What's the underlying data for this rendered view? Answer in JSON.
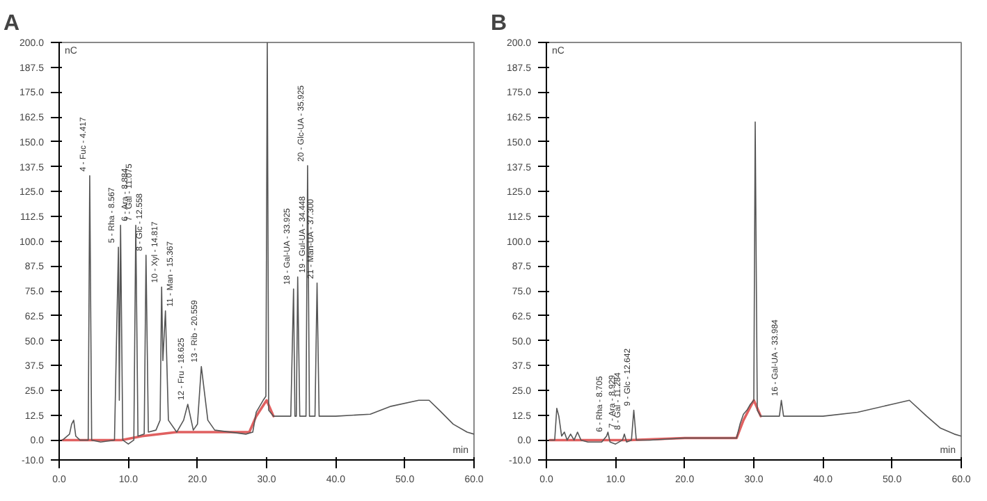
{
  "chart_data": [
    {
      "type": "line",
      "title": "A",
      "xlabel": "min",
      "ylabel": "nC",
      "xlim": [
        0,
        60
      ],
      "ylim": [
        -10,
        200
      ],
      "grid": false,
      "marker": "none",
      "line_style": "solid",
      "xticks": [
        {
          "value": 0,
          "label": "0.0"
        },
        {
          "value": 10,
          "label": "10.0"
        },
        {
          "value": 20,
          "label": "20.0"
        },
        {
          "value": 30,
          "label": "30.0"
        },
        {
          "value": 40,
          "label": "40.0"
        },
        {
          "value": 50,
          "label": "50.0"
        },
        {
          "value": 60,
          "label": "60.0"
        }
      ],
      "yticks": [
        {
          "value": -10,
          "label": "-10.0"
        },
        {
          "value": 0,
          "label": "0.0"
        },
        12.5,
        {
          "value": 25,
          "label": "25.0"
        },
        37.5,
        {
          "value": 50,
          "label": "50.0"
        },
        62.5,
        {
          "value": 75,
          "label": "75.0"
        },
        87.5,
        {
          "value": 100,
          "label": "100.0"
        },
        112.5,
        {
          "value": 125,
          "label": "125.0"
        },
        137.5,
        {
          "value": 150,
          "label": "150.0"
        },
        162.5,
        {
          "value": 175,
          "label": "175.0"
        },
        187.5,
        {
          "value": 200,
          "label": "200.0"
        }
      ],
      "series": [
        {
          "color": "#555555",
          "x": [
            0.5,
            1.5,
            1.8,
            2.1,
            2.4,
            3,
            4.2,
            4.42,
            4.7,
            6,
            8,
            8.57,
            8.7,
            8.88,
            9.2,
            10,
            10.8,
            11.08,
            11.4,
            12.3,
            12.56,
            12.9,
            14,
            14.6,
            14.82,
            15,
            15.37,
            15.8,
            17,
            18,
            18.6,
            19.4,
            20,
            20.56,
            21.5,
            22.5,
            27,
            28,
            28.5,
            29,
            29.5,
            29.9,
            30.1,
            30.3,
            31,
            33.5,
            33.9,
            34.1,
            34.3,
            34.5,
            34.8,
            35.7,
            35.93,
            36.2,
            37,
            37.3,
            37.6,
            40,
            45,
            48,
            52,
            53.5,
            55,
            57,
            59,
            60
          ],
          "values": [
            0,
            3,
            8,
            10,
            2,
            0,
            0,
            133,
            0,
            -1,
            0,
            97,
            20,
            108,
            0,
            -2,
            0,
            108,
            2,
            3,
            93,
            4,
            5,
            10,
            77,
            40,
            65,
            10,
            4,
            10,
            18,
            5,
            8,
            37,
            10,
            5,
            3,
            4,
            14,
            17,
            20,
            22,
            200,
            15,
            12,
            12,
            76,
            12,
            12,
            82,
            12,
            12,
            138,
            12,
            12,
            79,
            12,
            12,
            13,
            17,
            20,
            20,
            15,
            8,
            4,
            3
          ]
        },
        {
          "color": "#e06060",
          "x": [
            0.5,
            9,
            12,
            17,
            20,
            27.5,
            28.5,
            30,
            31
          ],
          "values": [
            0,
            0,
            2,
            4,
            4,
            4,
            12,
            20,
            12
          ]
        }
      ],
      "annotations": [
        {
          "text": "4 - Fuc - 4.417",
          "x": 4.42,
          "y": 133
        },
        {
          "text": "5 - Rha - 8.567",
          "x": 8.57,
          "y": 97
        },
        {
          "text": "6 - Ara - 8.884",
          "x": 8.88,
          "y": 108
        },
        {
          "text": "7 - Gal - 11.075",
          "x": 11.08,
          "y": 108
        },
        {
          "text": "8 - Glc - 12.558",
          "x": 12.56,
          "y": 93
        },
        {
          "text": "10 - Xyl - 14.817",
          "x": 14.82,
          "y": 77
        },
        {
          "text": "11 - Man - 15.367",
          "x": 15.37,
          "y": 65
        },
        {
          "text": "12 - Fru - 18.625",
          "x": 18.6,
          "y": 18
        },
        {
          "text": "13 - Rib - 20.559",
          "x": 20.56,
          "y": 37
        },
        {
          "text": "18 - Gal-UA - 33.925",
          "x": 33.9,
          "y": 76
        },
        {
          "text": "19 - Gul-UA - 34.448",
          "x": 34.5,
          "y": 82
        },
        {
          "text": "20 - Glc-UA - 35.925",
          "x": 35.93,
          "y": 138
        },
        {
          "text": "21 - Man-UA - 37.300",
          "x": 37.3,
          "y": 79
        }
      ]
    },
    {
      "type": "line",
      "title": "B",
      "xlabel": "min",
      "ylabel": "nC",
      "xlim": [
        0,
        60
      ],
      "ylim": [
        -10,
        200
      ],
      "grid": false,
      "marker": "none",
      "line_style": "solid",
      "xticks": [
        {
          "value": 0,
          "label": "0.0"
        },
        {
          "value": 10,
          "label": "10.0"
        },
        {
          "value": 20,
          "label": "20.0"
        },
        {
          "value": 30,
          "label": "30.0"
        },
        {
          "value": 40,
          "label": "40.0"
        },
        {
          "value": 50,
          "label": "50.0"
        },
        {
          "value": 60,
          "label": "60.0"
        }
      ],
      "yticks": [
        {
          "value": -10,
          "label": "-10.0"
        },
        {
          "value": 0,
          "label": "0.0"
        },
        12.5,
        {
          "value": 25,
          "label": "25.0"
        },
        37.5,
        {
          "value": 50,
          "label": "50.0"
        },
        62.5,
        {
          "value": 75,
          "label": "75.0"
        },
        87.5,
        {
          "value": 100,
          "label": "100.0"
        },
        112.5,
        {
          "value": 125,
          "label": "125.0"
        },
        137.5,
        {
          "value": 150,
          "label": "150.0"
        },
        162.5,
        {
          "value": 175,
          "label": "175.0"
        },
        187.5,
        {
          "value": 200,
          "label": "200.0"
        }
      ],
      "series": [
        {
          "color": "#555555",
          "x": [
            0.5,
            1.2,
            1.5,
            1.8,
            2.2,
            2.6,
            3,
            3.5,
            4,
            4.5,
            5,
            6,
            8,
            8.7,
            8.9,
            9.2,
            10,
            11,
            11.28,
            11.6,
            12.3,
            12.64,
            13,
            15,
            20,
            25,
            27.5,
            28,
            28.5,
            29,
            29.5,
            30,
            30.2,
            30.5,
            31,
            33.7,
            33.98,
            34.3,
            40,
            45,
            50,
            52.5,
            55,
            57,
            59,
            60
          ],
          "values": [
            0,
            0,
            16,
            12,
            2,
            4,
            0,
            3,
            0,
            4,
            0,
            -1,
            -1,
            2,
            4,
            -1,
            -2,
            0,
            3,
            -1,
            0,
            15,
            0,
            0,
            1,
            1,
            1,
            8,
            13,
            15,
            18,
            20,
            160,
            15,
            12,
            12,
            20,
            12,
            12,
            14,
            18,
            20,
            12,
            6,
            3,
            2
          ]
        },
        {
          "color": "#e06060",
          "x": [
            0.5,
            12,
            20,
            27.5,
            28.5,
            30,
            31
          ],
          "values": [
            0,
            0,
            1,
            1,
            10,
            20,
            12
          ]
        }
      ],
      "annotations": [
        {
          "text": "6 - Rha - 8.705",
          "x": 8.7,
          "y": 2
        },
        {
          "text": "7 - Ara - 8.929",
          "x": 8.9,
          "y": 4
        },
        {
          "text": "8 - Gal - 11.284",
          "x": 11.28,
          "y": 3
        },
        {
          "text": "9 - Glc - 12.642",
          "x": 12.64,
          "y": 15
        },
        {
          "text": "16 - Gal-UA - 33.984",
          "x": 33.98,
          "y": 20
        }
      ]
    }
  ]
}
